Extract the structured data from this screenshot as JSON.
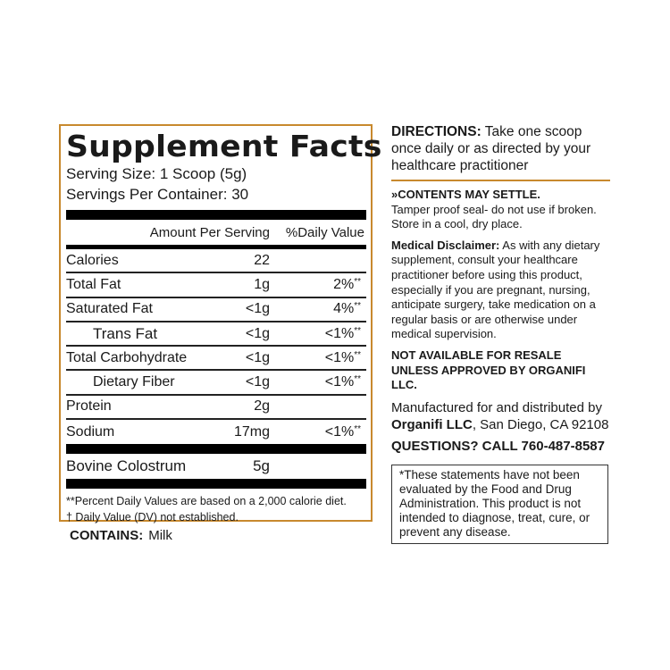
{
  "facts": {
    "title": "Supplement Facts",
    "serving_size": "Serving Size: 1 Scoop (5g)",
    "servings_per_container": "Servings Per Container: 30",
    "header_amount": "Amount Per Serving",
    "header_dv": "%Daily Value",
    "rows": [
      {
        "name": "Calories",
        "amount": "22",
        "dv": "",
        "mark": ""
      },
      {
        "name": "Total Fat",
        "amount": "1g",
        "dv": "2%",
        "mark": "**"
      },
      {
        "name": "Saturated Fat",
        "amount": "<1g",
        "dv": "4%",
        "mark": "**"
      },
      {
        "name": "Trans Fat",
        "amount": "<1g",
        "dv": "<1%",
        "mark": "**"
      },
      {
        "name": "Total Carbohydrate",
        "amount": "<1g",
        "dv": "<1%",
        "mark": "**"
      },
      {
        "name": "Dietary Fiber",
        "amount": "<1g",
        "dv": "<1%",
        "mark": "**"
      },
      {
        "name": "Protein",
        "amount": "2g",
        "dv": "",
        "mark": ""
      },
      {
        "name": "Sodium",
        "amount": "17mg",
        "dv": "<1%",
        "mark": "**"
      }
    ],
    "ingredient": {
      "name": "Bovine Colostrum",
      "amount": "5g"
    },
    "footnote1": "**Percent Daily Values are based on a 2,000 calorie diet.",
    "footnote2": "† Daily Value (DV) not established.",
    "border_color": "#c8892e"
  },
  "contains": {
    "label": "CONTAINS:",
    "value": "Milk"
  },
  "right": {
    "directions_label": "DIRECTIONS:",
    "directions_text": " Take one scoop once daily or as directed by your healthcare practitioner",
    "settle": "»CONTENTS MAY SETTLE.",
    "settle_text": "Tamper proof seal- do not use if broken. Store in a cool, dry place.",
    "medical_label": "Medical Disclaimer:",
    "medical_text": " As with any dietary supplement, consult your healthcare practitioner before using this product, especially if you are pregnant, nursing, anticipate surgery, take medication on a regular basis or are otherwise under medical supervision.",
    "resale": "NOT AVAILABLE FOR RESALE UNLESS APPROVED BY ORGANIFI LLC.",
    "manufactured": "Manufactured for and distributed by ",
    "company": "Organifi LLC",
    "location": ", San Diego, CA 92108",
    "questions": "QUESTIONS? CALL 760-487-8587",
    "disclaimer": "*These statements have not been evaluated by the Food and Drug Administration. This product is not intended to diagnose, treat, cure, or prevent any disease."
  }
}
